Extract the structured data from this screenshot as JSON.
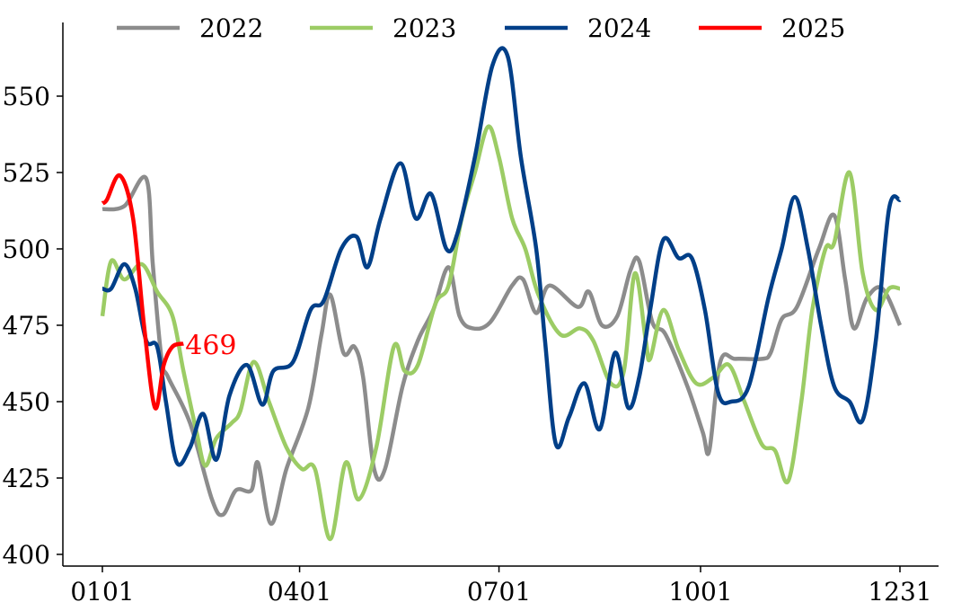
{
  "chart_data": {
    "type": "line",
    "title": "",
    "xlabel": "",
    "ylabel": "",
    "ylim": [
      397,
      575
    ],
    "yticks": [
      400,
      425,
      450,
      475,
      500,
      525,
      550
    ],
    "xticks": [
      "0101",
      "0401",
      "0701",
      "1001",
      "1231"
    ],
    "grid": false,
    "legend_placement": "top",
    "series": [
      {
        "name": "2022",
        "color": "#8c8c8c",
        "points": [
          [
            "0101",
            513
          ],
          [
            "0111",
            514
          ],
          [
            "0121",
            523
          ],
          [
            "0124",
            495
          ],
          [
            "0128",
            464
          ],
          [
            "0131",
            458
          ],
          [
            "0210",
            443
          ],
          [
            "0220",
            418
          ],
          [
            "0225",
            413
          ],
          [
            "0303",
            421
          ],
          [
            "0310",
            421
          ],
          [
            "0313",
            430
          ],
          [
            "0319",
            410
          ],
          [
            "0326",
            428
          ],
          [
            "0405",
            448
          ],
          [
            "0411",
            472
          ],
          [
            "0415",
            485
          ],
          [
            "0421",
            466
          ],
          [
            "0426",
            468
          ],
          [
            "0430",
            458
          ],
          [
            "0505",
            428
          ],
          [
            "0510",
            428
          ],
          [
            "0518",
            455
          ],
          [
            "0525",
            470
          ],
          [
            "0601",
            480
          ],
          [
            "0608",
            494
          ],
          [
            "0613",
            478
          ],
          [
            "0619",
            474
          ],
          [
            "0627",
            476
          ],
          [
            "0707",
            488
          ],
          [
            "0712",
            490
          ],
          [
            "0718",
            479
          ],
          [
            "0724",
            488
          ],
          [
            "0806",
            481
          ],
          [
            "0811",
            486
          ],
          [
            "0817",
            475
          ],
          [
            "0824",
            478
          ],
          [
            "0830",
            493
          ],
          [
            "0903",
            496
          ],
          [
            "0909",
            476
          ],
          [
            "0915",
            472
          ],
          [
            "0925",
            455
          ],
          [
            "1002",
            440
          ],
          [
            "1005",
            434
          ],
          [
            "1010",
            463
          ],
          [
            "1017",
            464
          ],
          [
            "1029",
            464
          ],
          [
            "1102",
            466
          ],
          [
            "1107",
            477
          ],
          [
            "1114",
            481
          ],
          [
            "1124",
            500
          ],
          [
            "1201",
            511
          ],
          [
            "1206",
            490
          ],
          [
            "1210",
            474
          ],
          [
            "1216",
            484
          ],
          [
            "1223",
            487
          ],
          [
            "1231",
            475
          ]
        ]
      },
      {
        "name": "2023",
        "color": "#9ccc65",
        "points": [
          [
            "0101",
            478
          ],
          [
            "0105",
            496
          ],
          [
            "0111",
            490
          ],
          [
            "0119",
            495
          ],
          [
            "0126",
            486
          ],
          [
            "0202",
            478
          ],
          [
            "0207",
            460
          ],
          [
            "0213",
            440
          ],
          [
            "0217",
            429
          ],
          [
            "0222",
            438
          ],
          [
            "0301",
            443
          ],
          [
            "0305",
            447
          ],
          [
            "0311",
            463
          ],
          [
            "0318",
            450
          ],
          [
            "0326",
            435
          ],
          [
            "0402",
            428
          ],
          [
            "0408",
            428
          ],
          [
            "0415",
            405
          ],
          [
            "0422",
            430
          ],
          [
            "0428",
            418
          ],
          [
            "0506",
            435
          ],
          [
            "0514",
            468
          ],
          [
            "0519",
            460
          ],
          [
            "0525",
            462
          ],
          [
            "0602",
            482
          ],
          [
            "0608",
            488
          ],
          [
            "0614",
            510
          ],
          [
            "0620",
            525
          ],
          [
            "0626",
            540
          ],
          [
            "0701",
            530
          ],
          [
            "0707",
            510
          ],
          [
            "0713",
            500
          ],
          [
            "0719",
            485
          ],
          [
            "0729",
            472
          ],
          [
            "0807",
            474
          ],
          [
            "0813",
            470
          ],
          [
            "0821",
            456
          ],
          [
            "0827",
            460
          ],
          [
            "0901",
            492
          ],
          [
            "0906",
            470
          ],
          [
            "0908",
            464
          ],
          [
            "0914",
            480
          ],
          [
            "0921",
            467
          ],
          [
            "0929",
            456
          ],
          [
            "1007",
            458
          ],
          [
            "1014",
            462
          ],
          [
            "1021",
            450
          ],
          [
            "1029",
            436
          ],
          [
            "1104",
            434
          ],
          [
            "1110",
            424
          ],
          [
            "1116",
            450
          ],
          [
            "1121",
            480
          ],
          [
            "1127",
            500
          ],
          [
            "1201",
            502
          ],
          [
            "1208",
            525
          ],
          [
            "1214",
            492
          ],
          [
            "1220",
            480
          ],
          [
            "1226",
            487
          ],
          [
            "1231",
            487
          ]
        ]
      },
      {
        "name": "2024",
        "color": "#003f88",
        "points": [
          [
            "0101",
            487
          ],
          [
            "0105",
            487
          ],
          [
            "0111",
            495
          ],
          [
            "0116",
            487
          ],
          [
            "0121",
            470
          ],
          [
            "0126",
            468
          ],
          [
            "0130",
            450
          ],
          [
            "0204",
            430
          ],
          [
            "0210",
            435
          ],
          [
            "0216",
            446
          ],
          [
            "0222",
            431
          ],
          [
            "0228",
            452
          ],
          [
            "0308",
            462
          ],
          [
            "0315",
            449
          ],
          [
            "0320",
            460
          ],
          [
            "0329",
            463
          ],
          [
            "0406",
            480
          ],
          [
            "0412",
            483
          ],
          [
            "0420",
            500
          ],
          [
            "0427",
            504
          ],
          [
            "0502",
            494
          ],
          [
            "0508",
            510
          ],
          [
            "0517",
            528
          ],
          [
            "0524",
            510
          ],
          [
            "0531",
            518
          ],
          [
            "0607",
            500
          ],
          [
            "0612",
            505
          ],
          [
            "0620",
            530
          ],
          [
            "0628",
            560
          ],
          [
            "0705",
            563
          ],
          [
            "0711",
            530
          ],
          [
            "0718",
            500
          ],
          [
            "0722",
            470
          ],
          [
            "0727",
            436
          ],
          [
            "0802",
            445
          ],
          [
            "0809",
            456
          ],
          [
            "0816",
            441
          ],
          [
            "0823",
            466
          ],
          [
            "0829",
            448
          ],
          [
            "0903",
            458
          ],
          [
            "0908",
            480
          ],
          [
            "0914",
            503
          ],
          [
            "0921",
            497
          ],
          [
            "0927",
            497
          ],
          [
            "1003",
            480
          ],
          [
            "1009",
            453
          ],
          [
            "1015",
            450
          ],
          [
            "1023",
            455
          ],
          [
            "1101",
            484
          ],
          [
            "1107",
            500
          ],
          [
            "1113",
            517
          ],
          [
            "1119",
            500
          ],
          [
            "1125",
            475
          ],
          [
            "1201",
            455
          ],
          [
            "1208",
            450
          ],
          [
            "1214",
            444
          ],
          [
            "1220",
            470
          ],
          [
            "1226",
            513
          ],
          [
            "1231",
            516
          ]
        ]
      },
      {
        "name": "2025",
        "color": "#ff0000",
        "points": [
          [
            "0101",
            515
          ],
          [
            "0103",
            516
          ],
          [
            "0109",
            524
          ],
          [
            "0115",
            510
          ],
          [
            "0120",
            475
          ],
          [
            "0125",
            448
          ],
          [
            "0129",
            462
          ],
          [
            "0202",
            468
          ],
          [
            "0207",
            469
          ]
        ],
        "end_label": "469"
      }
    ]
  }
}
